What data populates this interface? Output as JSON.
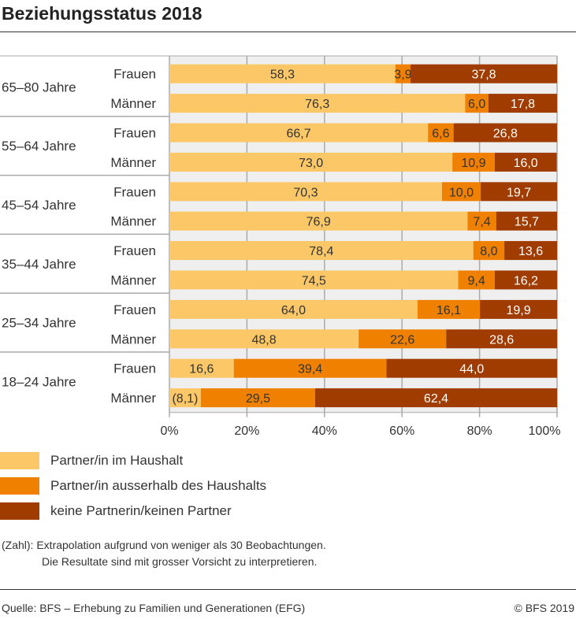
{
  "chart_data": {
    "type": "bar",
    "stacked": true,
    "orientation": "horizontal",
    "title": "Beziehungsstatus 2018",
    "xlim": [
      0,
      100
    ],
    "xticks": [
      "0%",
      "20%",
      "40%",
      "60%",
      "80%",
      "100%"
    ],
    "grid": true,
    "colors": [
      "#fcc766",
      "#f08000",
      "#a03c00"
    ],
    "legend_position": "bottom",
    "groups": [
      {
        "label": "65–80 Jahre",
        "rows": [
          {
            "label": "Frauen",
            "values": [
              58.3,
              3.9,
              37.8
            ],
            "text": [
              "58,3",
              "3,9",
              "37,8"
            ]
          },
          {
            "label": "Männer",
            "values": [
              76.3,
              6.0,
              17.8
            ],
            "text": [
              "76,3",
              "6,0",
              "17,8"
            ]
          }
        ]
      },
      {
        "label": "55–64 Jahre",
        "rows": [
          {
            "label": "Frauen",
            "values": [
              66.7,
              6.6,
              26.8
            ],
            "text": [
              "66,7",
              "6,6",
              "26,8"
            ]
          },
          {
            "label": "Männer",
            "values": [
              73.0,
              10.9,
              16.0
            ],
            "text": [
              "73,0",
              "10,9",
              "16,0"
            ]
          }
        ]
      },
      {
        "label": "45–54 Jahre",
        "rows": [
          {
            "label": "Frauen",
            "values": [
              70.3,
              10.0,
              19.7
            ],
            "text": [
              "70,3",
              "10,0",
              "19,7"
            ]
          },
          {
            "label": "Männer",
            "values": [
              76.9,
              7.4,
              15.7
            ],
            "text": [
              "76,9",
              "7,4",
              "15,7"
            ]
          }
        ]
      },
      {
        "label": "35–44 Jahre",
        "rows": [
          {
            "label": "Frauen",
            "values": [
              78.4,
              8.0,
              13.6
            ],
            "text": [
              "78,4",
              "8,0",
              "13,6"
            ]
          },
          {
            "label": "Männer",
            "values": [
              74.5,
              9.4,
              16.2
            ],
            "text": [
              "74,5",
              "9,4",
              "16,2"
            ]
          }
        ]
      },
      {
        "label": "25–34 Jahre",
        "rows": [
          {
            "label": "Frauen",
            "values": [
              64.0,
              16.1,
              19.9
            ],
            "text": [
              "64,0",
              "16,1",
              "19,9"
            ]
          },
          {
            "label": "Männer",
            "values": [
              48.8,
              22.6,
              28.6
            ],
            "text": [
              "48,8",
              "22,6",
              "28,6"
            ]
          }
        ]
      },
      {
        "label": "18–24 Jahre",
        "rows": [
          {
            "label": "Frauen",
            "values": [
              16.6,
              39.4,
              44.0
            ],
            "text": [
              "16,6",
              "39,4",
              "44,0"
            ]
          },
          {
            "label": "Männer",
            "values": [
              8.1,
              29.5,
              62.4
            ],
            "text": [
              "(8,1)",
              "29,5",
              "62,4"
            ]
          }
        ]
      }
    ],
    "series": [
      {
        "name": "Partner/in im Haushalt"
      },
      {
        "name": "Partner/in ausserhalb des Haushalts"
      },
      {
        "name": "keine Partnerin/keinen Partner"
      }
    ]
  },
  "note": {
    "line1": "(Zahl): Extrapolation aufgrund von weniger als 30 Beobachtungen.",
    "line2": "Die Resultate sind mit grosser Vorsicht zu interpretieren."
  },
  "source": "Quelle: BFS – Erhebung zu Familien und Generationen (EFG)",
  "copyright": "© BFS 2019"
}
